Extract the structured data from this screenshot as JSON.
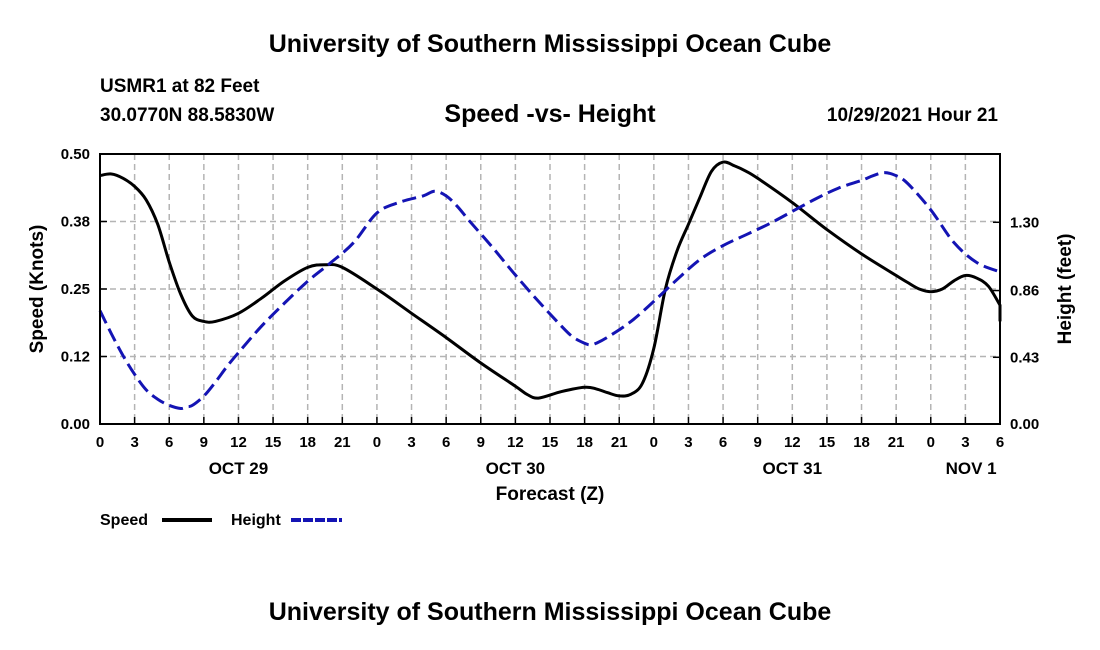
{
  "header": {
    "title": "University of Southern Mississippi Ocean Cube",
    "station": "USMR1 at 82 Feet",
    "coords": "30.0770N  88.5830W",
    "subtitle": "Speed -vs- Height",
    "datetime": "10/29/2021 Hour 21"
  },
  "footer": {
    "title": "University of Southern Mississippi Ocean Cube"
  },
  "chart_data": {
    "type": "line",
    "title": "Speed -vs- Height",
    "xlabel": "Forecast (Z)",
    "ylabel": "Speed (Knots)",
    "y2label": "Height (feet)",
    "x_unit": "hours since OCT 29 00Z",
    "xlim": [
      0,
      78
    ],
    "ylim": [
      0,
      0.5
    ],
    "y2lim": [
      0,
      1.74
    ],
    "x_ticks": [
      0,
      3,
      6,
      9,
      12,
      15,
      18,
      21,
      24,
      27,
      30,
      33,
      36,
      39,
      42,
      45,
      48,
      51,
      54,
      57,
      60,
      63,
      66,
      69,
      72,
      75,
      78
    ],
    "x_tick_labels": [
      "0",
      "3",
      "6",
      "9",
      "12",
      "15",
      "18",
      "21",
      "0",
      "3",
      "6",
      "9",
      "12",
      "15",
      "18",
      "21",
      "0",
      "3",
      "6",
      "9",
      "12",
      "15",
      "18",
      "21",
      "0",
      "3",
      "6"
    ],
    "day_labels": [
      {
        "label": "OCT 29",
        "x": 12
      },
      {
        "label": "OCT 30",
        "x": 36
      },
      {
        "label": "OCT 31",
        "x": 60
      },
      {
        "label": "NOV 1",
        "x": 75.5
      }
    ],
    "y_ticks": [
      0.0,
      0.125,
      0.25,
      0.375,
      0.5
    ],
    "y_tick_labels": [
      "0.00",
      "0.12",
      "0.25",
      "0.38",
      "0.50"
    ],
    "y2_ticks": [
      0.0,
      0.43,
      0.86,
      1.3
    ],
    "y2_tick_labels": [
      "0.00",
      "0.43",
      "0.86",
      "1.30"
    ],
    "grid": true,
    "legend": {
      "position": "bottom-left",
      "entries": [
        "Speed",
        "Height"
      ]
    },
    "series": [
      {
        "name": "Speed",
        "axis": "left",
        "color": "#000000",
        "style": "solid",
        "x": [
          0,
          1,
          2,
          3,
          4,
          5,
          6,
          7,
          8,
          9,
          10,
          12,
          14,
          16,
          18,
          19.5,
          21,
          24,
          27,
          30,
          33,
          36,
          37,
          38,
          40,
          42,
          43,
          44,
          45,
          46,
          47,
          48,
          49,
          50,
          51,
          52,
          53,
          54,
          55,
          56,
          57,
          60,
          63,
          66,
          69,
          70,
          71,
          72,
          73,
          74,
          75,
          76,
          77,
          78
        ],
        "values": [
          0.46,
          0.463,
          0.455,
          0.44,
          0.415,
          0.37,
          0.3,
          0.24,
          0.2,
          0.19,
          0.19,
          0.205,
          0.233,
          0.265,
          0.29,
          0.295,
          0.29,
          0.25,
          0.205,
          0.16,
          0.113,
          0.07,
          0.055,
          0.048,
          0.06,
          0.068,
          0.065,
          0.058,
          0.052,
          0.055,
          0.075,
          0.14,
          0.25,
          0.32,
          0.37,
          0.42,
          0.468,
          0.485,
          0.478,
          0.468,
          0.455,
          0.41,
          0.36,
          0.315,
          0.275,
          0.262,
          0.25,
          0.245,
          0.25,
          0.265,
          0.275,
          0.27,
          0.255,
          0.22
        ],
        "extra_x": [
          78
        ],
        "extra_values": [
          0.19
        ]
      },
      {
        "name": "Height",
        "axis": "right",
        "color": "#1414b4",
        "style": "dashed",
        "x": [
          0,
          1,
          2,
          3,
          4,
          5,
          6,
          7,
          7.5,
          8,
          9,
          10,
          11,
          12,
          14,
          16,
          18,
          20,
          22,
          24,
          26,
          28,
          29,
          30,
          31,
          32,
          34,
          36,
          38,
          40,
          41,
          42,
          42.5,
          43,
          44,
          46,
          48,
          50,
          52,
          54,
          56,
          58,
          60,
          62,
          64,
          66,
          67,
          68,
          69,
          70,
          72,
          74,
          76,
          78
        ],
        "values": [
          0.73,
          0.58,
          0.44,
          0.32,
          0.22,
          0.16,
          0.12,
          0.1,
          0.11,
          0.12,
          0.18,
          0.27,
          0.37,
          0.46,
          0.63,
          0.78,
          0.92,
          1.04,
          1.17,
          1.36,
          1.43,
          1.47,
          1.5,
          1.47,
          1.4,
          1.31,
          1.14,
          0.96,
          0.79,
          0.63,
          0.56,
          0.52,
          0.51,
          0.52,
          0.56,
          0.66,
          0.79,
          0.93,
          1.06,
          1.15,
          1.22,
          1.29,
          1.37,
          1.45,
          1.52,
          1.57,
          1.6,
          1.62,
          1.6,
          1.55,
          1.38,
          1.17,
          1.04,
          0.98
        ]
      }
    ]
  }
}
